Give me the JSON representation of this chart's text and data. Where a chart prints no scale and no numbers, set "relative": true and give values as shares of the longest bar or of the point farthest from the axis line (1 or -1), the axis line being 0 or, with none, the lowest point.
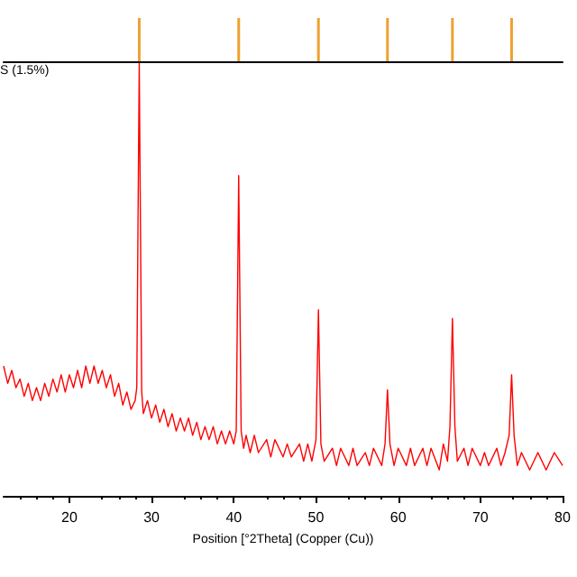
{
  "chart_data": [
    {
      "type": "bar",
      "relative": true,
      "tick_labels": false,
      "annotations": [
        "S (1.5%)"
      ],
      "xlim": [
        12,
        80
      ],
      "x": [
        28.5,
        40.6,
        50.3,
        58.7,
        66.6,
        73.8
      ],
      "series": [
        {
          "color": "#f0a030",
          "values": [
            1,
            1,
            1,
            1,
            1,
            1
          ]
        }
      ]
    },
    {
      "type": "line",
      "relative": true,
      "xlabel": "Position [°2Theta] (Copper (Cu))",
      "xlim": [
        12,
        80
      ],
      "xticks": [
        20,
        30,
        40,
        50,
        60,
        70,
        80
      ],
      "x": [
        12,
        12.5,
        13,
        13.5,
        14,
        14.5,
        15,
        15.5,
        16,
        16.5,
        17,
        17.5,
        18,
        18.5,
        19,
        19.5,
        20,
        20.5,
        21,
        21.5,
        22,
        22.5,
        23,
        23.5,
        24,
        24.5,
        25,
        25.5,
        26,
        26.5,
        27,
        27.5,
        28,
        28.2,
        28.5,
        28.8,
        29,
        29.5,
        30,
        30.5,
        31,
        31.5,
        32,
        32.5,
        33,
        33.5,
        34,
        34.5,
        35,
        35.5,
        36,
        36.5,
        37,
        37.5,
        38,
        38.5,
        39,
        39.5,
        40,
        40.3,
        40.6,
        40.9,
        41.2,
        41.5,
        42,
        42.5,
        43,
        44,
        44.5,
        45,
        46,
        46.5,
        47,
        48,
        48.5,
        49,
        49.5,
        50,
        50.3,
        50.6,
        51,
        52,
        52.5,
        53,
        54,
        54.5,
        55,
        56,
        56.5,
        57,
        58,
        58.4,
        58.7,
        59,
        59.5,
        60,
        61,
        61.5,
        62,
        63,
        63.5,
        64,
        65,
        65.5,
        66,
        66.3,
        66.6,
        66.9,
        67.2,
        68,
        68.5,
        69,
        70,
        70.5,
        71,
        72,
        72.5,
        73,
        73.5,
        73.8,
        74.1,
        74.5,
        75,
        76,
        77,
        78,
        79,
        80
      ],
      "series": [
        {
          "color": "#ff0000",
          "values": [
            0.3,
            0.26,
            0.29,
            0.25,
            0.27,
            0.23,
            0.26,
            0.22,
            0.25,
            0.22,
            0.26,
            0.23,
            0.27,
            0.24,
            0.28,
            0.24,
            0.28,
            0.25,
            0.29,
            0.25,
            0.3,
            0.26,
            0.3,
            0.26,
            0.29,
            0.25,
            0.28,
            0.23,
            0.26,
            0.21,
            0.24,
            0.2,
            0.22,
            0.25,
            1,
            0.24,
            0.19,
            0.22,
            0.18,
            0.21,
            0.17,
            0.2,
            0.16,
            0.19,
            0.15,
            0.18,
            0.15,
            0.18,
            0.14,
            0.17,
            0.13,
            0.16,
            0.13,
            0.16,
            0.12,
            0.15,
            0.12,
            0.15,
            0.12,
            0.15,
            0.74,
            0.15,
            0.11,
            0.14,
            0.1,
            0.14,
            0.1,
            0.13,
            0.09,
            0.13,
            0.09,
            0.12,
            0.09,
            0.12,
            0.08,
            0.12,
            0.08,
            0.13,
            0.43,
            0.12,
            0.08,
            0.11,
            0.07,
            0.11,
            0.07,
            0.11,
            0.07,
            0.1,
            0.07,
            0.11,
            0.07,
            0.12,
            0.245,
            0.12,
            0.07,
            0.11,
            0.07,
            0.11,
            0.07,
            0.11,
            0.07,
            0.11,
            0.06,
            0.12,
            0.08,
            0.16,
            0.41,
            0.16,
            0.08,
            0.11,
            0.07,
            0.11,
            0.07,
            0.1,
            0.07,
            0.11,
            0.07,
            0.1,
            0.14,
            0.28,
            0.14,
            0.07,
            0.1,
            0.06,
            0.1,
            0.06,
            0.1,
            0.07
          ]
        }
      ]
    }
  ]
}
